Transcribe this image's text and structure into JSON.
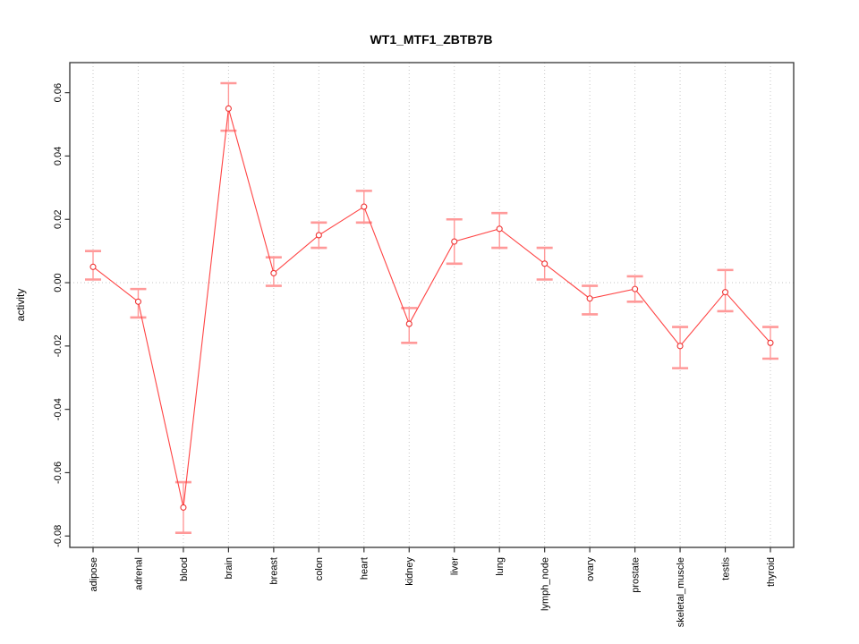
{
  "chart_data": {
    "type": "line",
    "title": "WT1_MTF1_ZBTB7B",
    "xlabel": "",
    "ylabel": "activity",
    "categories": [
      "adipose",
      "adrenal",
      "blood",
      "brain",
      "breast",
      "colon",
      "heart",
      "kidney",
      "liver",
      "lung",
      "lymph_node",
      "ovary",
      "prostate",
      "skeletal_muscle",
      "testis",
      "thyroid"
    ],
    "series": [
      {
        "name": "WT1_MTF1_ZBTB7B activity",
        "values": [
          0.005,
          -0.006,
          -0.071,
          0.055,
          0.003,
          0.015,
          0.024,
          -0.013,
          0.013,
          0.017,
          0.006,
          -0.005,
          -0.002,
          -0.02,
          -0.003,
          -0.019
        ],
        "ci_lower": [
          0.001,
          -0.011,
          -0.079,
          0.048,
          -0.001,
          0.011,
          0.019,
          -0.019,
          0.006,
          0.011,
          0.001,
          -0.01,
          -0.006,
          -0.027,
          -0.009,
          -0.024
        ],
        "ci_upper": [
          0.01,
          -0.002,
          -0.063,
          0.063,
          0.008,
          0.019,
          0.029,
          -0.008,
          0.02,
          0.022,
          0.011,
          -0.001,
          0.002,
          -0.014,
          0.004,
          -0.014
        ]
      }
    ],
    "ylim": [
      -0.0836,
      0.0695
    ],
    "yticks": [
      0.06,
      0.04,
      0.02,
      0,
      -0.02,
      -0.04,
      -0.06,
      -0.08
    ],
    "grid": {
      "vertical_per_category": true,
      "zero_line": true,
      "style": "dotted"
    },
    "legend": "none",
    "marker": "open-circle",
    "colors": {
      "line": "#ff4444",
      "marker_stroke": "#ee3333",
      "marker_fill": "#ffffff",
      "error_bar": "#ff9999",
      "grid": "#c6c6c6",
      "axis": "#333333",
      "text": "#000000"
    }
  }
}
